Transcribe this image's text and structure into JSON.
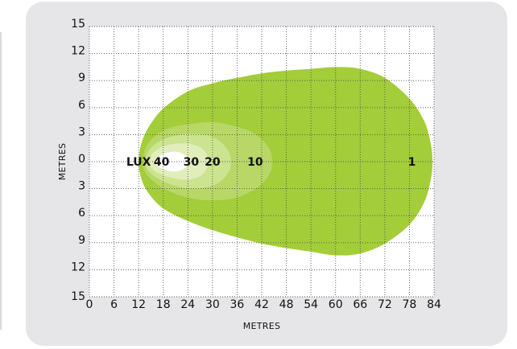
{
  "colors": {
    "panel": "#e6e6e8",
    "plot_bg": "#ffffff",
    "grid": "#555555",
    "zone_1": "#a3cd39",
    "zone_10": "#b8d766",
    "zone_20": "#cce38f",
    "zone_30": "#e1eebb",
    "zone_40": "#ffffff"
  },
  "chart_data": {
    "type": "isolux",
    "xlabel": "METRES",
    "ylabel": "METRES",
    "x_ticks": [
      0,
      6,
      12,
      18,
      24,
      30,
      36,
      42,
      48,
      54,
      60,
      66,
      72,
      78,
      84
    ],
    "y_ticks": [
      15,
      12,
      9,
      6,
      3,
      0,
      3,
      6,
      9,
      12,
      15
    ],
    "xlim": [
      0,
      84
    ],
    "ylim": [
      -15,
      15
    ],
    "grid": true,
    "unit_label": "LUX",
    "zones": [
      {
        "lux": 1,
        "label": "1",
        "color_key": "zone_1",
        "outline": [
          [
            12.0,
            0.0
          ],
          [
            12.6,
            1.9
          ],
          [
            14.4,
            3.8
          ],
          [
            18.0,
            5.9
          ],
          [
            24.0,
            7.8
          ],
          [
            30.0,
            8.7
          ],
          [
            36.0,
            9.3
          ],
          [
            42.0,
            9.8
          ],
          [
            48.0,
            10.1
          ],
          [
            54.0,
            10.3
          ],
          [
            60.0,
            10.5
          ],
          [
            66.0,
            10.3
          ],
          [
            72.0,
            9.3
          ],
          [
            78.0,
            7.0
          ],
          [
            81.6,
            4.5
          ],
          [
            83.2,
            2.0
          ],
          [
            83.6,
            0.0
          ],
          [
            83.2,
            -2.0
          ],
          [
            81.6,
            -4.5
          ],
          [
            78.0,
            -7.0
          ],
          [
            72.0,
            -9.1
          ],
          [
            66.0,
            -10.2
          ],
          [
            60.0,
            -10.4
          ],
          [
            54.0,
            -10.0
          ],
          [
            48.0,
            -9.6
          ],
          [
            42.0,
            -9.1
          ],
          [
            36.0,
            -8.4
          ],
          [
            30.0,
            -7.6
          ],
          [
            24.0,
            -6.6
          ],
          [
            18.0,
            -5.2
          ],
          [
            14.4,
            -3.5
          ],
          [
            12.6,
            -1.8
          ]
        ],
        "label_at": [
          78.6,
          0.0
        ]
      },
      {
        "lux": 10,
        "label": "10",
        "color_key": "zone_10",
        "outline": [
          [
            13.0,
            0.0
          ],
          [
            13.8,
            1.6
          ],
          [
            16.2,
            2.9
          ],
          [
            20.0,
            3.8
          ],
          [
            25.0,
            4.2
          ],
          [
            30.0,
            4.4
          ],
          [
            35.0,
            4.0
          ],
          [
            39.0,
            3.4
          ],
          [
            42.0,
            2.5
          ],
          [
            44.0,
            1.3
          ],
          [
            44.6,
            0.0
          ],
          [
            44.0,
            -1.3
          ],
          [
            42.0,
            -2.5
          ],
          [
            39.0,
            -3.4
          ],
          [
            35.0,
            -4.1
          ],
          [
            30.0,
            -4.3
          ],
          [
            25.0,
            -4.1
          ],
          [
            20.0,
            -3.4
          ],
          [
            16.2,
            -2.4
          ],
          [
            13.8,
            -1.3
          ]
        ],
        "label_at": [
          40.4,
          0.0
        ]
      },
      {
        "lux": 20,
        "label": "20",
        "color_key": "zone_20",
        "outline": [
          [
            13.6,
            0.0
          ],
          [
            14.6,
            1.3
          ],
          [
            17.2,
            2.3
          ],
          [
            21.0,
            2.9
          ],
          [
            25.0,
            3.1
          ],
          [
            29.0,
            2.9
          ],
          [
            32.0,
            2.2
          ],
          [
            34.0,
            1.1
          ],
          [
            34.5,
            0.0
          ],
          [
            34.0,
            -1.1
          ],
          [
            32.0,
            -2.2
          ],
          [
            29.0,
            -2.8
          ],
          [
            25.0,
            -3.0
          ],
          [
            21.0,
            -2.7
          ],
          [
            17.2,
            -2.0
          ],
          [
            14.6,
            -1.1
          ]
        ],
        "label_at": [
          30.0,
          0.0
        ]
      },
      {
        "lux": 30,
        "label": "30",
        "color_key": "zone_30",
        "outline": [
          [
            14.4,
            0.0
          ],
          [
            15.6,
            1.0
          ],
          [
            18.0,
            1.7
          ],
          [
            21.0,
            2.0
          ],
          [
            24.0,
            2.0
          ],
          [
            27.0,
            1.6
          ],
          [
            28.6,
            0.8
          ],
          [
            29.0,
            0.0
          ],
          [
            28.6,
            -0.8
          ],
          [
            27.0,
            -1.6
          ],
          [
            24.0,
            -2.0
          ],
          [
            21.0,
            -1.9
          ],
          [
            18.0,
            -1.5
          ],
          [
            15.6,
            -0.9
          ]
        ],
        "label_at": [
          24.8,
          0.0
        ]
      },
      {
        "lux": 40,
        "label": "40",
        "color_key": "zone_40",
        "outline": [
          [
            16.2,
            0.0
          ],
          [
            17.0,
            0.6
          ],
          [
            19.0,
            1.0
          ],
          [
            21.0,
            1.1
          ],
          [
            22.6,
            0.9
          ],
          [
            23.7,
            0.5
          ],
          [
            24.0,
            0.0
          ],
          [
            23.7,
            -0.5
          ],
          [
            22.6,
            -0.9
          ],
          [
            21.0,
            -1.1
          ],
          [
            19.0,
            -1.0
          ],
          [
            17.0,
            -0.6
          ]
        ],
        "label_at": [
          17.6,
          0.0
        ]
      }
    ]
  }
}
